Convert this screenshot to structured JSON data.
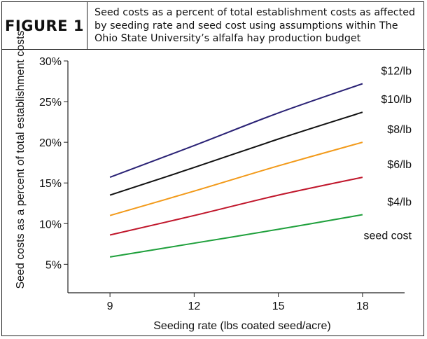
{
  "figure": {
    "label": "FIGURE 1",
    "title": "Seed costs as a percent of total establishment costs as affected by seeding rate and seed cost using assumptions within The Ohio State University’s alfalfa hay production budget"
  },
  "chart_data": {
    "type": "line",
    "xlabel": "Seeding rate (lbs coated seed/acre)",
    "ylabel": "Seed costs as a percent of total establishment costs",
    "x_ticks": [
      "9",
      "12",
      "15",
      "18"
    ],
    "y_ticks": [
      "5%",
      "10%",
      "15%",
      "20%",
      "25%",
      "30%"
    ],
    "xlim": [
      7.5,
      19.5
    ],
    "ylim": [
      1.5,
      30
    ],
    "grid": false,
    "legend_title": "seed cost",
    "series": [
      {
        "name": "$12/lb",
        "color": "#2a2275",
        "x": [
          9,
          12,
          15,
          18
        ],
        "y": [
          15.7,
          19.6,
          23.6,
          27.2
        ]
      },
      {
        "name": "$10/lb",
        "color": "#111111",
        "x": [
          9,
          12,
          15,
          18
        ],
        "y": [
          13.5,
          16.9,
          20.4,
          23.7
        ]
      },
      {
        "name": "$8/lb",
        "color": "#f29a1a",
        "x": [
          9,
          12,
          15,
          18
        ],
        "y": [
          11.0,
          14.0,
          17.1,
          20.0
        ]
      },
      {
        "name": "$6/lb",
        "color": "#c0162b",
        "x": [
          9,
          12,
          15,
          18
        ],
        "y": [
          8.6,
          11.0,
          13.5,
          15.7
        ]
      },
      {
        "name": "$4/lb",
        "color": "#1fa03c",
        "x": [
          9,
          12,
          15,
          18
        ],
        "y": [
          5.9,
          7.6,
          9.3,
          11.1
        ]
      }
    ]
  }
}
